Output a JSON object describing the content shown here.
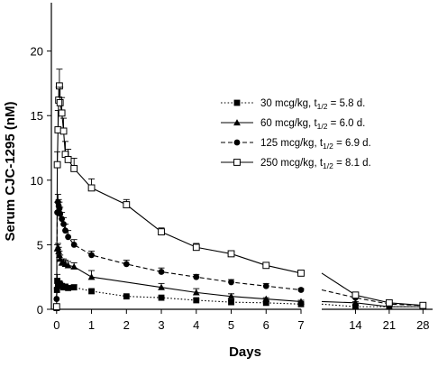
{
  "chart_data": {
    "type": "line",
    "title": "",
    "xlabel": "Days",
    "ylabel": "Serum CJC-1295 (nM)",
    "ylim": [
      0,
      22
    ],
    "y_ticks": [
      0,
      5,
      10,
      15,
      20
    ],
    "x_panels": [
      {
        "xlim": [
          -0.15,
          7
        ],
        "x_ticks": [
          0,
          1,
          2,
          3,
          4,
          5,
          6,
          7
        ]
      },
      {
        "xlim": [
          7,
          30
        ],
        "x_ticks": [
          14,
          21,
          28
        ]
      }
    ],
    "legend_position": "right",
    "grid": false,
    "series": [
      {
        "name": "30 mcg/kg, t",
        "name_sub": "1/2",
        "name_suffix": " = 5.8 d.",
        "marker": "filled-square",
        "line_style": "dotted",
        "x": [
          0,
          0.01,
          0.02,
          0.04,
          0.06,
          0.08,
          0.1,
          0.15,
          0.2,
          0.25,
          0.33,
          0.5,
          1,
          2,
          3,
          4,
          5,
          6,
          7,
          14,
          21,
          28
        ],
        "y": [
          0.1,
          1.5,
          2.2,
          1.9,
          2.0,
          2.0,
          1.9,
          1.8,
          1.7,
          1.75,
          1.65,
          1.7,
          1.4,
          1.0,
          0.9,
          0.7,
          0.55,
          0.5,
          0.4,
          0.2,
          0.2,
          0.2
        ],
        "err": [
          0,
          0.1,
          0.5,
          0.3,
          0.2,
          0.2,
          0.2,
          0.2,
          0.2,
          0.2,
          0.2,
          0.2,
          0.1,
          0.1,
          0.1,
          0.1,
          0.1,
          0.1,
          0.1,
          0,
          0,
          0
        ]
      },
      {
        "name": "60 mcg/kg, t",
        "name_sub": "1/2",
        "name_suffix": " = 6.0 d.",
        "marker": "filled-triangle",
        "line_style": "solid",
        "x": [
          0.02,
          0.04,
          0.06,
          0.08,
          0.1,
          0.15,
          0.2,
          0.25,
          0.33,
          0.5,
          1,
          3,
          4,
          5,
          6,
          7,
          14,
          21,
          28
        ],
        "y": [
          4.7,
          4.8,
          4.5,
          4.2,
          3.9,
          3.6,
          3.6,
          3.5,
          3.4,
          3.3,
          2.5,
          1.7,
          1.3,
          1.0,
          0.8,
          0.6,
          0.5,
          0.2,
          0.2
        ],
        "err": [
          0.3,
          0.3,
          0.3,
          0.3,
          0.3,
          0.3,
          0.3,
          0.3,
          0.3,
          0.3,
          0.5,
          0.3,
          0.3,
          0.2,
          0.1,
          0.1,
          0.1,
          0,
          0
        ]
      },
      {
        "name": "125 mcg/kg, t",
        "name_sub": "1/2",
        "name_suffix": " = 6.9 d.",
        "marker": "filled-circle",
        "line_style": "dashed",
        "x": [
          0,
          0.02,
          0.04,
          0.06,
          0.08,
          0.1,
          0.15,
          0.2,
          0.25,
          0.33,
          0.5,
          1,
          2,
          3,
          4,
          5,
          6,
          7,
          14,
          21,
          28
        ],
        "y": [
          0.8,
          7.5,
          8.3,
          8.0,
          7.8,
          7.4,
          7.0,
          6.6,
          6.1,
          5.6,
          5.0,
          4.2,
          3.5,
          2.9,
          2.5,
          2.1,
          1.8,
          1.5,
          0.9,
          0.4,
          0.3
        ],
        "err": [
          0,
          0.8,
          0.6,
          0.5,
          0.5,
          0.5,
          0.5,
          0.5,
          0.5,
          0.5,
          0.4,
          0.3,
          0.3,
          0.3,
          0.2,
          0.2,
          0.2,
          0.1,
          0.1,
          0,
          0
        ]
      },
      {
        "name": "250 mcg/kg, t",
        "name_sub": "1/2",
        "name_suffix": " = 8.1 d.",
        "marker": "open-square",
        "line_style": "solid",
        "x": [
          0,
          0.02,
          0.04,
          0.06,
          0.08,
          0.1,
          0.15,
          0.2,
          0.25,
          0.33,
          0.5,
          1,
          2,
          3,
          4,
          5,
          6,
          7,
          14,
          21,
          28
        ],
        "y": [
          0.2,
          11.2,
          13.9,
          16.2,
          17.3,
          16.0,
          15.2,
          13.8,
          12.0,
          11.6,
          10.9,
          9.4,
          8.1,
          6.0,
          4.8,
          4.3,
          3.4,
          2.8,
          1.1,
          0.5,
          0.3
        ],
        "err": [
          0,
          1.0,
          1.5,
          1.0,
          1.3,
          1.2,
          1.2,
          1.0,
          1.0,
          0.8,
          0.8,
          0.7,
          0.4,
          0.3,
          0.3,
          0.2,
          0.2,
          0.2,
          0.1,
          0,
          0
        ]
      }
    ]
  }
}
